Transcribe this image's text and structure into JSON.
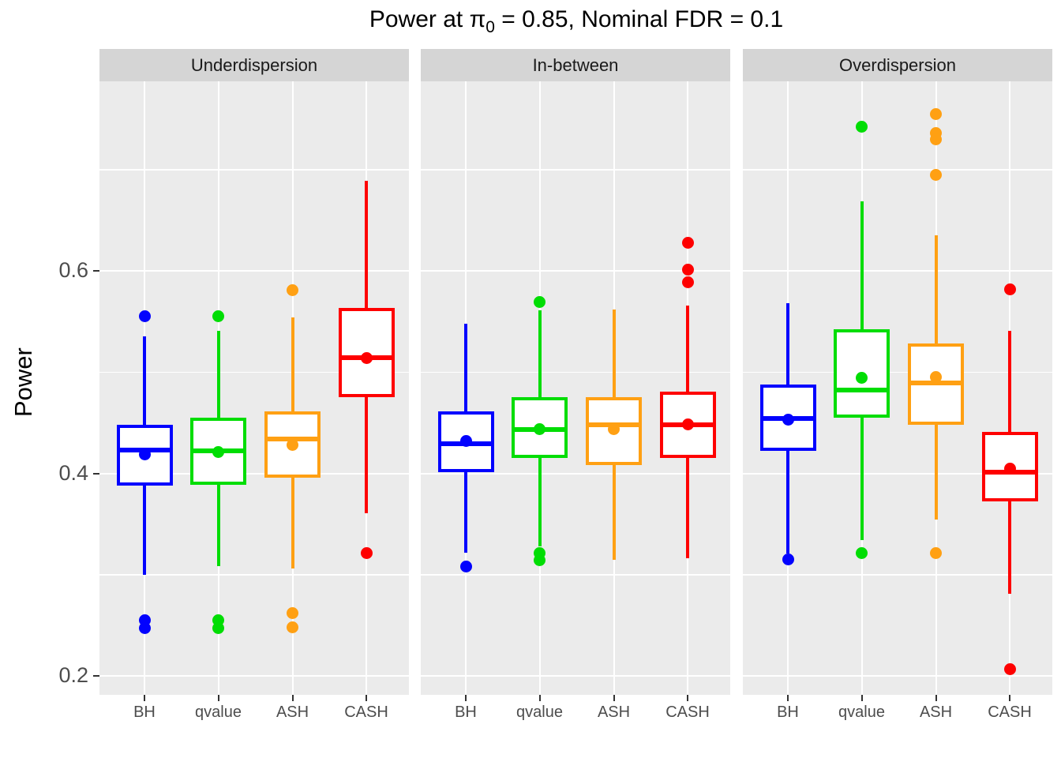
{
  "title": {
    "before_sub": "Power at π",
    "sub": "0",
    "after_sub": " = 0.85, Nominal FDR = 0.1"
  },
  "chart_data": {
    "type": "boxplot",
    "title": "Power at π0 = 0.85, Nominal FDR = 0.1",
    "ylabel": "Power",
    "xlabel": "",
    "y_ticks": [
      0.2,
      0.4,
      0.6
    ],
    "y_minor_ticks": [
      0.3,
      0.5,
      0.7
    ],
    "ylim": [
      0.181,
      0.787
    ],
    "grid": "on",
    "legend": "none",
    "categories": [
      "BH",
      "qvalue",
      "ASH",
      "CASH"
    ],
    "colors": {
      "BH": "#0202fe",
      "qvalue": "#00dd04",
      "ASH": "#ffa013",
      "CASH": "#fe0000"
    },
    "facets": [
      {
        "label": "Underdispersion",
        "boxes": [
          {
            "method": "BH",
            "low": 0.3,
            "q1": 0.388,
            "median": 0.423,
            "q3": 0.448,
            "high": 0.535,
            "mean": 0.419,
            "outliers": [
              0.555,
              0.255,
              0.247
            ]
          },
          {
            "method": "qvalue",
            "low": 0.308,
            "q1": 0.389,
            "median": 0.422,
            "q3": 0.455,
            "high": 0.541,
            "mean": 0.421,
            "outliers": [
              0.555,
              0.255,
              0.247
            ]
          },
          {
            "method": "ASH",
            "low": 0.306,
            "q1": 0.396,
            "median": 0.434,
            "q3": 0.461,
            "high": 0.554,
            "mean": 0.428,
            "outliers": [
              0.581,
              0.262,
              0.248
            ]
          },
          {
            "method": "CASH",
            "low": 0.361,
            "q1": 0.475,
            "median": 0.514,
            "q3": 0.563,
            "high": 0.689,
            "mean": 0.514,
            "outliers": [
              0.321
            ]
          }
        ]
      },
      {
        "label": "In-between",
        "boxes": [
          {
            "method": "BH",
            "low": 0.322,
            "q1": 0.401,
            "median": 0.429,
            "q3": 0.461,
            "high": 0.548,
            "mean": 0.432,
            "outliers": [
              0.308
            ]
          },
          {
            "method": "qvalue",
            "low": 0.328,
            "q1": 0.415,
            "median": 0.443,
            "q3": 0.475,
            "high": 0.561,
            "mean": 0.444,
            "outliers": [
              0.569,
              0.321,
              0.314
            ]
          },
          {
            "method": "ASH",
            "low": 0.315,
            "q1": 0.408,
            "median": 0.448,
            "q3": 0.475,
            "high": 0.562,
            "mean": 0.444,
            "outliers": []
          },
          {
            "method": "CASH",
            "low": 0.316,
            "q1": 0.415,
            "median": 0.448,
            "q3": 0.481,
            "high": 0.566,
            "mean": 0.448,
            "outliers": [
              0.628,
              0.601,
              0.589
            ]
          }
        ]
      },
      {
        "label": "Overdispersion",
        "boxes": [
          {
            "method": "BH",
            "low": 0.321,
            "q1": 0.422,
            "median": 0.454,
            "q3": 0.488,
            "high": 0.568,
            "mean": 0.453,
            "outliers": [
              0.315
            ]
          },
          {
            "method": "qvalue",
            "low": 0.334,
            "q1": 0.455,
            "median": 0.482,
            "q3": 0.542,
            "high": 0.669,
            "mean": 0.494,
            "outliers": [
              0.742,
              0.321
            ]
          },
          {
            "method": "ASH",
            "low": 0.354,
            "q1": 0.448,
            "median": 0.489,
            "q3": 0.528,
            "high": 0.635,
            "mean": 0.495,
            "outliers": [
              0.755,
              0.736,
              0.73,
              0.695,
              0.321
            ]
          },
          {
            "method": "CASH",
            "low": 0.281,
            "q1": 0.372,
            "median": 0.401,
            "q3": 0.441,
            "high": 0.541,
            "mean": 0.405,
            "outliers": [
              0.582,
              0.207
            ]
          }
        ]
      }
    ]
  }
}
